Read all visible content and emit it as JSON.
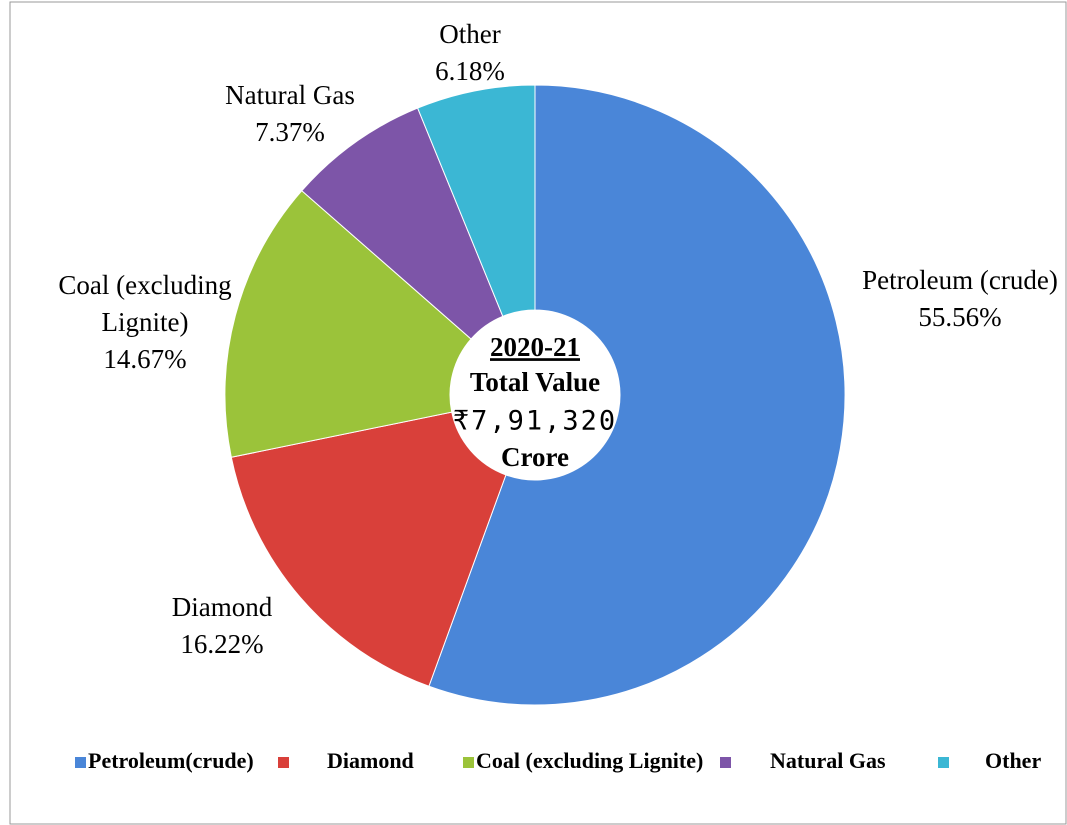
{
  "chart_data": {
    "type": "donut",
    "categories": [
      "Petroleum (crude)",
      "Diamond",
      "Coal (excluding Lignite)",
      "Natural Gas",
      "Other"
    ],
    "values": [
      55.56,
      16.22,
      14.67,
      7.37,
      6.18
    ],
    "value_labels": [
      "55.56%",
      "16.22%",
      "14.67%",
      "7.37%",
      "6.18%"
    ],
    "colors": [
      "#4a86d8",
      "#d9403a",
      "#9bc33a",
      "#7d55a8",
      "#3bb7d4"
    ],
    "legend_labels": [
      "Petroleum(crude)",
      "Diamond",
      "Coal (excluding Lignite)",
      "Natural Gas",
      "Other"
    ],
    "center_text": [
      "2020-21",
      "Total Value",
      "₹7,91,320",
      "Crore"
    ],
    "legend": "bottom"
  }
}
